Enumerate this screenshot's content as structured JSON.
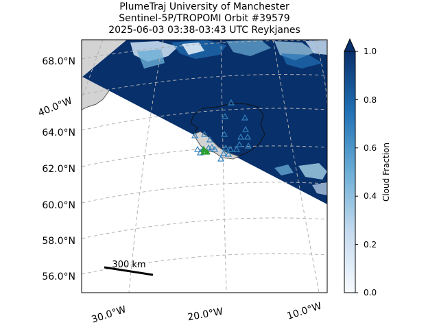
{
  "title": {
    "line1": "PlumeTraj    University of Manchester",
    "line2": "Sentinel-5P/TROPOMI Orbit #39579",
    "line3": "2025-06-03   03:38-03:43 UTC   Reykjanes"
  },
  "lat_labels": [
    "68.0°N",
    "64.0°N",
    "62.0°N",
    "60.0°N",
    "58.0°N",
    "56.0°N"
  ],
  "lon_labels": [
    "40.0°W",
    "30.0°W",
    "20.0°W",
    "10.0°W"
  ],
  "scale_bar": {
    "label": "300 km"
  },
  "colorbar": {
    "label": "Cloud Fraction",
    "ticks": [
      "0.0",
      "0.2",
      "0.4",
      "0.6",
      "0.8",
      "1.0"
    ],
    "color_low": "#f7fbff",
    "color_high": "#08306b"
  },
  "colors": {
    "land": "#d3d3d3",
    "coast": "#555555",
    "grid": "#b0b0b0",
    "cloud_dark": "#08306b",
    "cloud_mid": "#2171b5",
    "cloud_light": "#c6dbef",
    "triangle": "#3182bd",
    "source_marker": "#2ca02c"
  },
  "markers": {
    "triangle_count": 25,
    "source_count": 3
  }
}
